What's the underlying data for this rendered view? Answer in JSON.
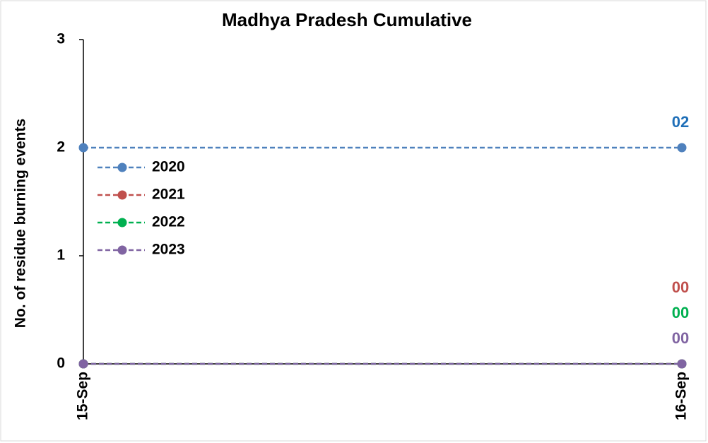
{
  "chart_data": {
    "type": "line",
    "title": "Madhya Pradesh Cumulative",
    "y_label": "No. of residue burning events",
    "categories": [
      "15-Sep",
      "16-Sep"
    ],
    "series": [
      {
        "name": "2020",
        "color": "#4f81bd",
        "label_color": "#1f6fb8",
        "values": [
          2,
          2
        ],
        "value_labels": [
          null,
          "02"
        ]
      },
      {
        "name": "2021",
        "color": "#c0504d",
        "label_color": "#c0504d",
        "values": [
          0,
          0
        ],
        "value_labels": [
          null,
          "00"
        ]
      },
      {
        "name": "2022",
        "color": "#00b050",
        "label_color": "#00b050",
        "values": [
          0,
          0
        ],
        "value_labels": [
          null,
          "00"
        ]
      },
      {
        "name": "2023",
        "color": "#8064a2",
        "label_color": "#8064a2",
        "values": [
          0,
          0
        ],
        "value_labels": [
          null,
          "00"
        ]
      }
    ],
    "ylim": [
      0,
      3
    ],
    "yticks": [
      0,
      1,
      2,
      3
    ],
    "grid": false,
    "legend": "upper left"
  }
}
